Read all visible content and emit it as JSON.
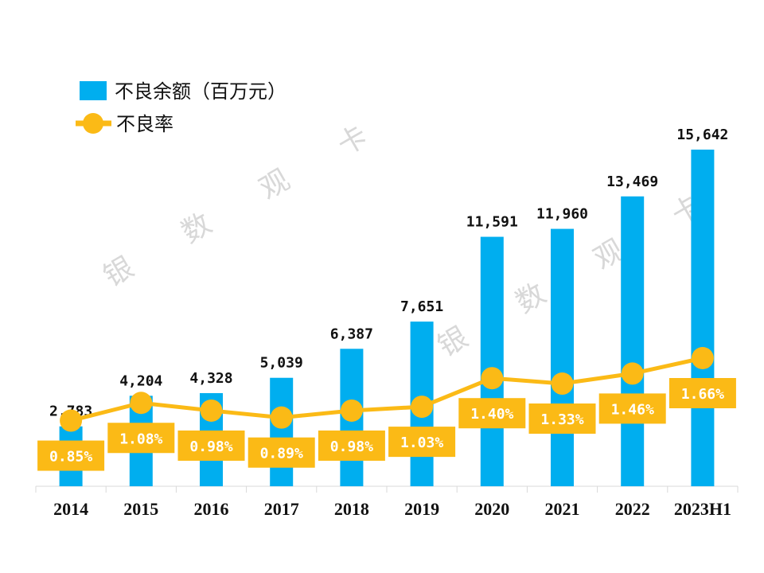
{
  "chart_data": {
    "type": "bar+line",
    "title": "",
    "categories": [
      "2014",
      "2015",
      "2016",
      "2017",
      "2018",
      "2019",
      "2020",
      "2021",
      "2022",
      "2023H1"
    ],
    "series": [
      {
        "name": "不良余额（百万元）",
        "type": "bar",
        "color": "#00AEEF",
        "values": [
          2783,
          4204,
          4328,
          5039,
          6387,
          7651,
          11591,
          11960,
          13469,
          15642
        ],
        "labels": [
          "2,783",
          "4,204",
          "4,328",
          "5,039",
          "6,387",
          "7,651",
          "11,591",
          "11,960",
          "13,469",
          "15,642"
        ]
      },
      {
        "name": "不良率",
        "type": "line",
        "color": "#FBBA16",
        "unit": "%",
        "values": [
          0.85,
          1.08,
          0.98,
          0.89,
          0.98,
          1.03,
          1.4,
          1.33,
          1.46,
          1.66
        ],
        "labels": [
          "0.85%",
          "1.08%",
          "0.98%",
          "0.89%",
          "0.98%",
          "1.03%",
          "1.40%",
          "1.33%",
          "1.46%",
          "1.66%"
        ]
      }
    ],
    "ylim_left": [
      0,
      15642
    ],
    "ylim_right": [
      0,
      4.35
    ],
    "grid": false,
    "legend_position": "top-left"
  },
  "watermark": [
    "银",
    "数",
    "观",
    "卡"
  ]
}
